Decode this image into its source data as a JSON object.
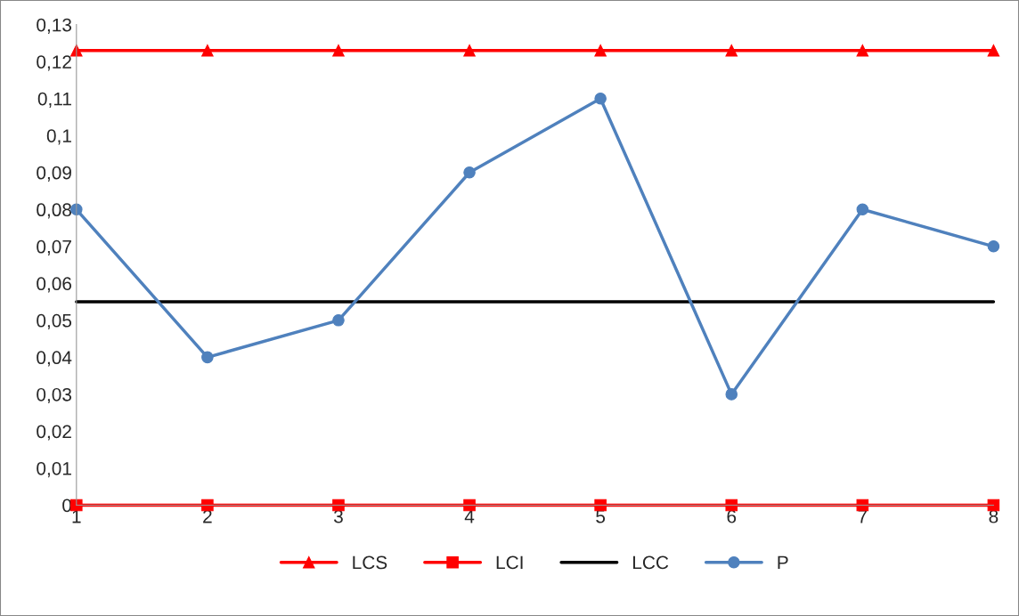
{
  "chart_data": {
    "type": "line",
    "categories": [
      "1",
      "2",
      "3",
      "4",
      "5",
      "6",
      "7",
      "8"
    ],
    "series": [
      {
        "name": "LCS",
        "color": "#ff0000",
        "marker": "triangle",
        "values": [
          0.123,
          0.123,
          0.123,
          0.123,
          0.123,
          0.123,
          0.123,
          0.123
        ]
      },
      {
        "name": "LCI",
        "color": "#ff0000",
        "marker": "square",
        "values": [
          0,
          0,
          0,
          0,
          0,
          0,
          0,
          0
        ]
      },
      {
        "name": "LCC",
        "color": "#000000",
        "marker": "none",
        "values": [
          0.055,
          0.055,
          0.055,
          0.055,
          0.055,
          0.055,
          0.055,
          0.055
        ]
      },
      {
        "name": "P",
        "color": "#4f81bd",
        "marker": "circle",
        "values": [
          0.08,
          0.04,
          0.05,
          0.09,
          0.11,
          0.03,
          0.08,
          0.07
        ]
      }
    ],
    "ylim": [
      0,
      0.13
    ],
    "yticks": [
      0,
      {
        "value": 0.01,
        "label": "0,01"
      },
      {
        "value": 0.02,
        "label": "0,02"
      },
      {
        "value": 0.03,
        "label": "0,03"
      },
      {
        "value": 0.04,
        "label": "0,04"
      },
      {
        "value": 0.05,
        "label": "0,05"
      },
      {
        "value": 0.06,
        "label": "0,06"
      },
      {
        "value": 0.07,
        "label": "0,07"
      },
      {
        "value": 0.08,
        "label": "0,08"
      },
      {
        "value": 0.09,
        "label": "0,09"
      },
      {
        "value": 0.1,
        "label": "0,1"
      },
      {
        "value": 0.11,
        "label": "0,11"
      },
      {
        "value": 0.12,
        "label": "0,12"
      },
      {
        "value": 0.13,
        "label": "0,13"
      }
    ],
    "grid": false,
    "legend": "bottom",
    "line_style": "solid"
  }
}
